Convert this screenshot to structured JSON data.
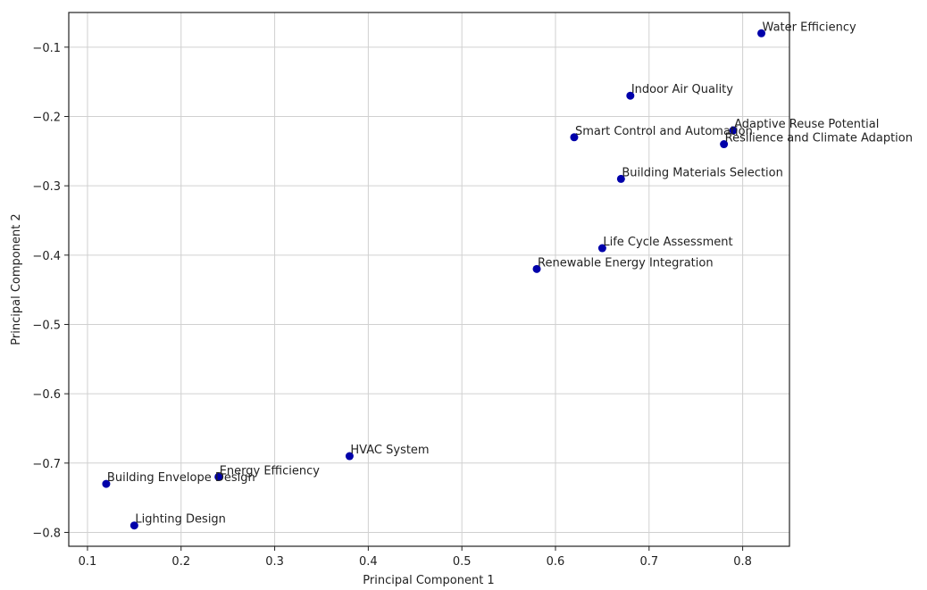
{
  "chart_data": {
    "type": "scatter",
    "title": "",
    "xlabel": "Principal Component 1",
    "ylabel": "Principal Component 2",
    "xlim": [
      0.08,
      0.85
    ],
    "ylim": [
      -0.82,
      -0.05
    ],
    "xticks": [
      0.1,
      0.2,
      0.3,
      0.4,
      0.5,
      0.6,
      0.7,
      0.8
    ],
    "yticks": [
      -0.1,
      -0.2,
      -0.3,
      -0.4,
      -0.5,
      -0.6,
      -0.7,
      -0.8
    ],
    "xtick_labels": [
      "0.1",
      "0.2",
      "0.3",
      "0.4",
      "0.5",
      "0.6",
      "0.7",
      "0.8"
    ],
    "ytick_labels": [
      "−0.1",
      "−0.2",
      "−0.3",
      "−0.4",
      "−0.5",
      "−0.6",
      "−0.7",
      "−0.8"
    ],
    "grid": true,
    "marker_color": "#0000aa",
    "points": [
      {
        "label": "Water Efficiency",
        "x": 0.82,
        "y": -0.08
      },
      {
        "label": "Indoor Air Quality",
        "x": 0.68,
        "y": -0.17
      },
      {
        "label": "Adaptive Reuse Potential",
        "x": 0.79,
        "y": -0.22
      },
      {
        "label": "Smart Control and Automation",
        "x": 0.62,
        "y": -0.23
      },
      {
        "label": "Resilience and Climate Adaption",
        "x": 0.78,
        "y": -0.24
      },
      {
        "label": "Building Materials Selection",
        "x": 0.67,
        "y": -0.29
      },
      {
        "label": "Life Cycle Assessment",
        "x": 0.65,
        "y": -0.39
      },
      {
        "label": "Renewable Energy Integration",
        "x": 0.58,
        "y": -0.42
      },
      {
        "label": "HVAC System",
        "x": 0.38,
        "y": -0.69
      },
      {
        "label": "Energy Efficiency",
        "x": 0.24,
        "y": -0.72
      },
      {
        "label": "Building Envelope Design",
        "x": 0.12,
        "y": -0.73
      },
      {
        "label": "Lighting Design",
        "x": 0.15,
        "y": -0.79
      }
    ]
  }
}
